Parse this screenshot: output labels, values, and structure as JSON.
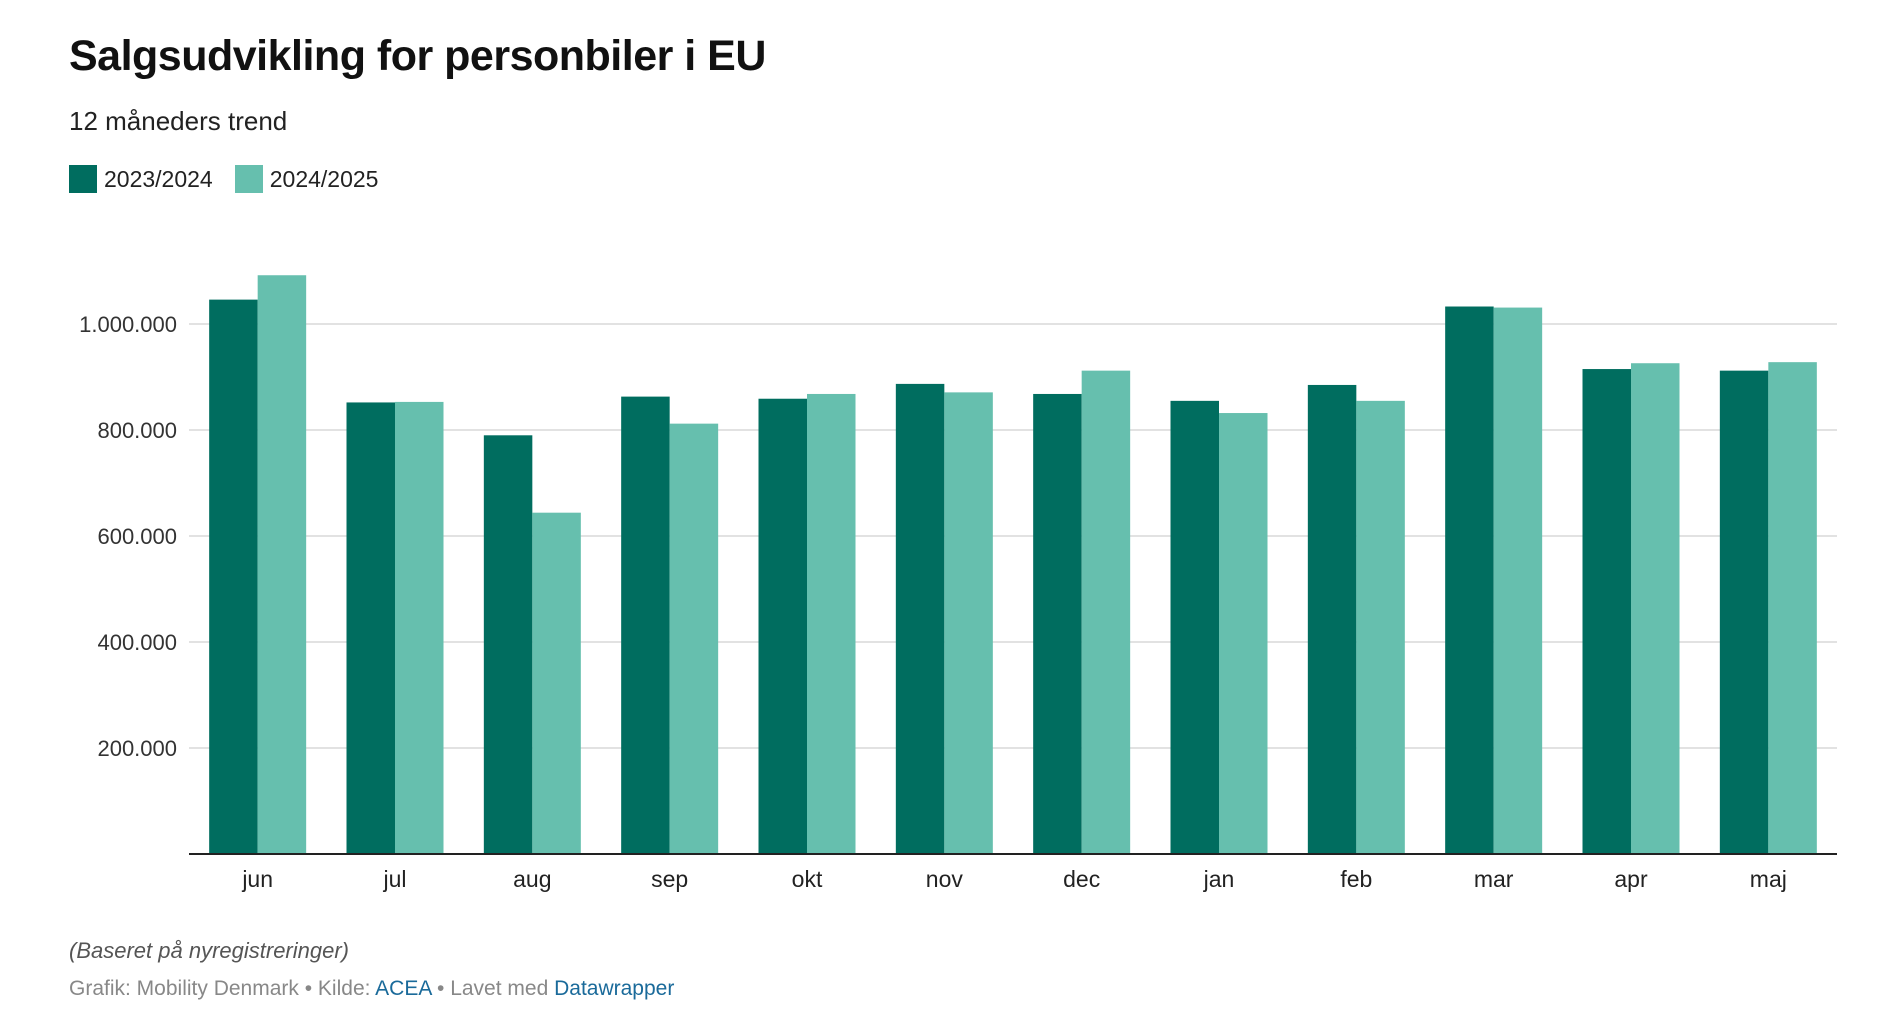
{
  "title": "Salgsudvikling for personbiler i EU",
  "subtitle": "12 måneders trend",
  "colors": {
    "series1": "#006d5f",
    "series2": "#66bfae",
    "grid": "#d9d9d9",
    "axis": "#222222"
  },
  "chart_data": {
    "type": "bar",
    "categories": [
      "jun",
      "jul",
      "aug",
      "sep",
      "okt",
      "nov",
      "dec",
      "jan",
      "feb",
      "mar",
      "apr",
      "maj"
    ],
    "series": [
      {
        "name": "2023/2024",
        "values": [
          1046000,
          852000,
          790000,
          863000,
          859000,
          887000,
          868000,
          855000,
          885000,
          1033000,
          915000,
          912000
        ]
      },
      {
        "name": "2024/2025",
        "values": [
          1092000,
          853000,
          644000,
          812000,
          868000,
          871000,
          912000,
          832000,
          855000,
          1031000,
          926000,
          928000
        ]
      }
    ],
    "yticks": [
      "200.000",
      "400.000",
      "600.000",
      "800.000",
      "1.000.000"
    ],
    "ylim": [
      0,
      1100000
    ],
    "grid": true,
    "legend_position": "top-left"
  },
  "footer": {
    "note": "(Baseret på nyregistreringer)",
    "grafik": "Grafik: Mobility Denmark",
    "sep1": " • ",
    "kilde_label": "Kilde: ",
    "kilde": "ACEA",
    "sep2": " • ",
    "lavet_label": "Lavet med ",
    "lavet": "Datawrapper"
  }
}
